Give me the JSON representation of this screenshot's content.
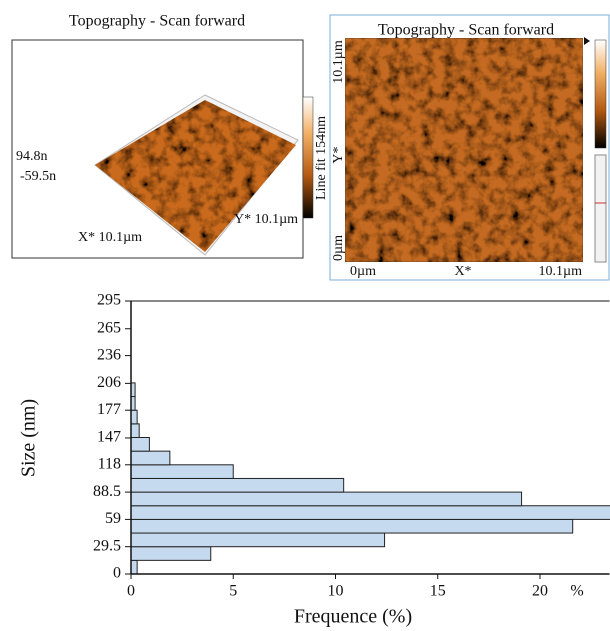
{
  "panels": [
    {
      "title": "Topography - Scan forward",
      "z_max": "94.8n",
      "z_min": "-59.5n",
      "x_label": "X* 10.1µm",
      "y_label": "Y* 10.1µm",
      "colorbar_label": "Line fit 154nm"
    },
    {
      "title": "Topography - Scan forward",
      "y_max": "10.1µm",
      "y_axis": "Y*",
      "y_min": "0µm",
      "x_min": "0µm",
      "x_axis": "X*",
      "x_max": "10.1µm"
    }
  ],
  "chart_data": {
    "type": "histogram",
    "orientation": "horizontal",
    "x_label": "Frequence (%)",
    "x_unit_label": "%",
    "y_label": "Size (nm)",
    "bins": [
      0,
      14.75,
      29.5,
      44.25,
      59,
      73.75,
      88.5,
      103.25,
      118,
      132.75,
      147.5,
      162.25,
      177,
      191.75,
      206.5,
      221.25,
      236,
      250.75,
      265.5,
      280.25,
      295
    ],
    "values": [
      0.3,
      3.9,
      12.4,
      21.6,
      23.5,
      19.1,
      10.4,
      5.0,
      1.9,
      0.9,
      0.4,
      0.3,
      0.2,
      0.2,
      0,
      0,
      0,
      0,
      0,
      0
    ],
    "color": "#c6daef",
    "xlim": [
      0,
      23.4
    ],
    "xticks": [
      0,
      5,
      10,
      15,
      20
    ],
    "ylim": [
      0,
      295
    ],
    "yticks": [
      0,
      29.5,
      59,
      88.5,
      118,
      147,
      177,
      206,
      236,
      265,
      295
    ]
  }
}
